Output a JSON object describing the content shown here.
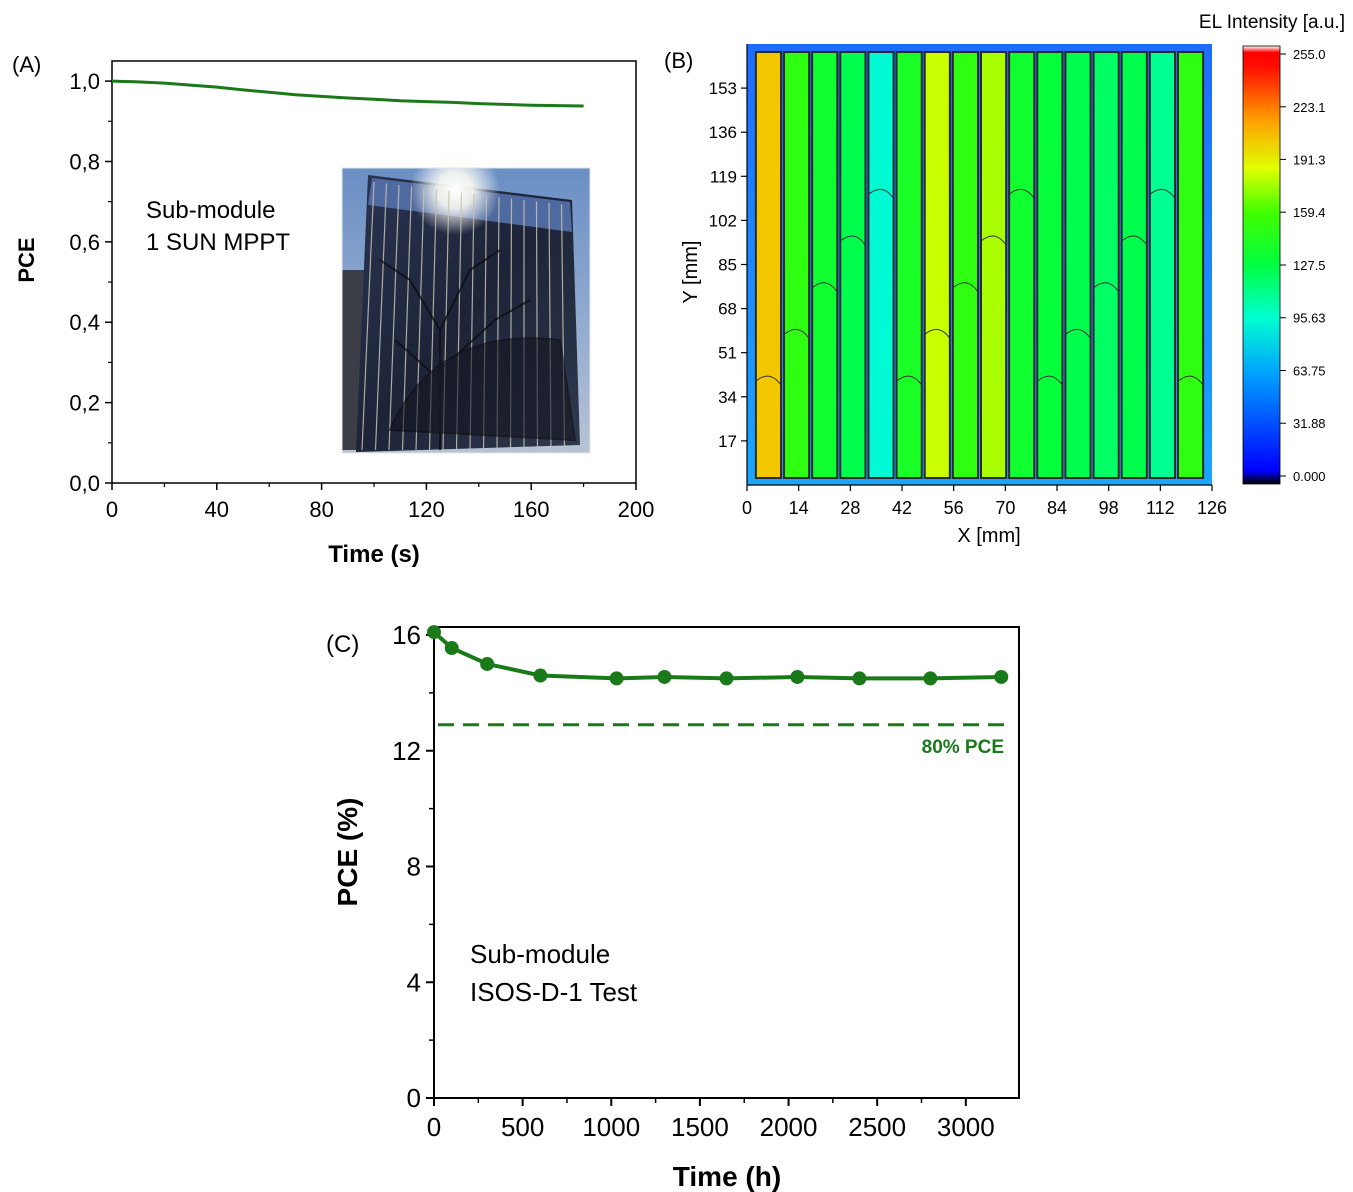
{
  "colors": {
    "series": "#1a7a1a",
    "axis": "#000000"
  },
  "chart_data": [
    {
      "panel_label": "(A)",
      "type": "line",
      "title": "",
      "xlabel": "Time (s)",
      "ylabel": "PCE",
      "xlim": [
        0,
        200
      ],
      "ylim": [
        0,
        1.05
      ],
      "xticks": [
        0,
        40,
        80,
        120,
        160,
        200
      ],
      "xtick_labels": [
        "0",
        "40",
        "80",
        "120",
        "160",
        "200"
      ],
      "yticks": [
        0,
        0.2,
        0.4,
        0.6,
        0.8,
        1.0
      ],
      "ytick_labels": [
        "0,0",
        "0,2",
        "0,4",
        "0,6",
        "0,8",
        "1,0"
      ],
      "annotation": [
        "Sub-module",
        "1 SUN MPPT"
      ],
      "inset": "photo of sub-module outdoors",
      "series": [
        {
          "x": [
            0,
            10,
            20,
            30,
            40,
            50,
            60,
            70,
            80,
            90,
            100,
            110,
            120,
            130,
            140,
            150,
            160,
            170,
            180
          ],
          "y": [
            1.0,
            0.998,
            0.995,
            0.99,
            0.985,
            0.978,
            0.972,
            0.966,
            0.962,
            0.958,
            0.955,
            0.951,
            0.949,
            0.947,
            0.944,
            0.942,
            0.94,
            0.939,
            0.938
          ]
        }
      ],
      "grid": false
    },
    {
      "panel_label": "(B)",
      "type": "heatmap",
      "title": "",
      "xlabel": "X [mm]",
      "ylabel": "Y [mm]",
      "xlim": [
        0,
        126
      ],
      "ylim": [
        0,
        170
      ],
      "xtick_labels": [
        "0",
        "14",
        "28",
        "42",
        "56",
        "70",
        "84",
        "98",
        "112",
        "126"
      ],
      "ytick_labels": [
        "17",
        "34",
        "51",
        "68",
        "85",
        "102",
        "119",
        "136",
        "153"
      ],
      "xticks": [
        0,
        14,
        28,
        42,
        56,
        70,
        84,
        98,
        112,
        126
      ],
      "yticks": [
        17,
        34,
        51,
        68,
        85,
        102,
        119,
        136,
        153
      ],
      "colorbar_title": "EL Intensity [a.u.]",
      "colorbar_range": [
        0,
        255
      ],
      "colorbar_tick_labels": [
        "255.0",
        "223.1",
        "191.3",
        "159.4",
        "127.5",
        "95.63",
        "63.75",
        "31.88",
        "0.000"
      ],
      "colorbar_ticks": [
        255.0,
        223.1,
        191.3,
        159.4,
        127.5,
        95.63,
        63.75,
        31.88,
        0.0
      ],
      "strip_count": 16,
      "strip_mean_intensity": [
        200,
        150,
        135,
        125,
        95,
        140,
        180,
        150,
        175,
        135,
        130,
        125,
        120,
        125,
        110,
        150
      ]
    },
    {
      "panel_label": "(C)",
      "type": "line",
      "title": "",
      "xlabel": "Time (h)",
      "ylabel": "PCE (%)",
      "xlim": [
        0,
        3300
      ],
      "ylim": [
        0,
        16
      ],
      "xticks": [
        0,
        500,
        1000,
        1500,
        2000,
        2500,
        3000
      ],
      "xtick_labels": [
        "0",
        "500",
        "1000",
        "1500",
        "2000",
        "2500",
        "3000"
      ],
      "yticks": [
        0,
        4,
        8,
        12,
        16
      ],
      "ytick_labels": [
        "0",
        "4",
        "8",
        "12",
        "16"
      ],
      "annotation": [
        "Sub-module",
        "ISOS-D-1 Test"
      ],
      "reference_line": {
        "y": 12.9,
        "label": "80% PCE",
        "style": "dashed"
      },
      "series": [
        {
          "x": [
            0,
            100,
            300,
            600,
            1030,
            1300,
            1650,
            2050,
            2400,
            2800,
            3200
          ],
          "y": [
            16.1,
            15.55,
            15.0,
            14.6,
            14.5,
            14.55,
            14.5,
            14.55,
            14.5,
            14.5,
            14.55
          ]
        }
      ],
      "grid": false
    }
  ]
}
